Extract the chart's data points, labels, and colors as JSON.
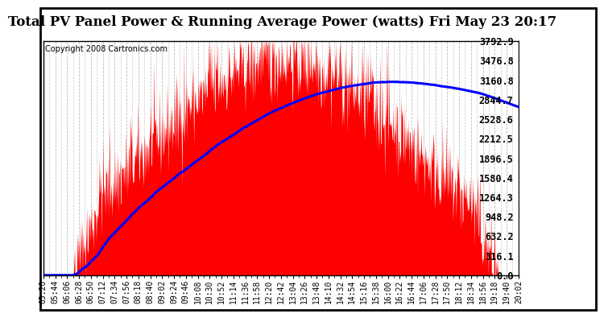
{
  "title": "Total PV Panel Power & Running Average Power (watts) Fri May 23 20:17",
  "copyright": "Copyright 2008 Cartronics.com",
  "y_max": 3792.9,
  "y_min": 0.0,
  "yticks": [
    0.0,
    316.1,
    632.2,
    948.2,
    1264.3,
    1580.4,
    1896.5,
    2212.5,
    2528.6,
    2844.7,
    3160.8,
    3476.8,
    3792.9
  ],
  "xtick_labels": [
    "05:20",
    "05:44",
    "06:06",
    "06:28",
    "06:50",
    "07:12",
    "07:34",
    "07:56",
    "08:18",
    "08:40",
    "09:02",
    "09:24",
    "09:46",
    "10:08",
    "10:30",
    "10:52",
    "11:14",
    "11:36",
    "11:58",
    "12:20",
    "12:42",
    "13:04",
    "13:26",
    "13:48",
    "14:10",
    "14:32",
    "14:54",
    "15:16",
    "15:38",
    "16:00",
    "16:22",
    "16:44",
    "17:06",
    "17:28",
    "17:50",
    "18:12",
    "18:34",
    "18:56",
    "19:18",
    "19:40",
    "20:02"
  ],
  "bg_color": "#ffffff",
  "plot_bg_color": "#ffffff",
  "grid_color": "#bbbbbb",
  "fill_color": "#ff0000",
  "line_color": "#0000ff",
  "title_fontsize": 12,
  "copyright_fontsize": 7,
  "tick_fontsize": 7,
  "border_color": "#000000"
}
